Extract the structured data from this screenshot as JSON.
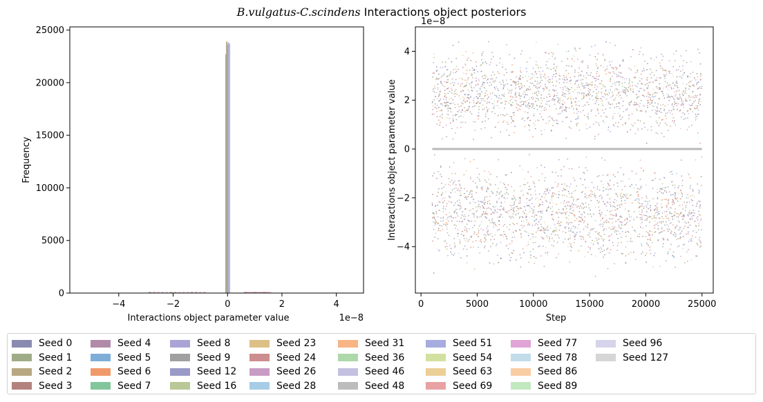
{
  "figure": {
    "title_italic": "B.vulgatus-C.scindens",
    "title_rest": " Interactions object posteriors"
  },
  "chart_data": [
    {
      "type": "bar",
      "subtype": "histogram",
      "xlabel": "Interactions object parameter value",
      "ylabel": "Frequency",
      "x_offset_label": "1e−8",
      "xlim": [
        -5.8,
        5.0
      ],
      "ylim": [
        0,
        25300
      ],
      "xticks": [
        -4,
        -2,
        0,
        2,
        4
      ],
      "yticks": [
        0,
        5000,
        10000,
        15000,
        20000,
        25000
      ],
      "peak_series": [
        {
          "seed": "Seed 0",
          "x": -0.05,
          "count": 22700
        },
        {
          "seed": "Seed 2",
          "x": -0.03,
          "count": 23900
        },
        {
          "seed": "Seed 5",
          "x": 0.01,
          "count": 23600
        },
        {
          "seed": "Seed 8",
          "x": 0.04,
          "count": 23800
        },
        {
          "seed": "Seed 48",
          "x": 0.07,
          "count": 23700
        }
      ],
      "tails_x_range": [
        [
          -2.9,
          -0.9
        ],
        [
          0.6,
          1.5
        ]
      ],
      "grid": false
    },
    {
      "type": "scatter",
      "xlabel": "Step",
      "ylabel": "Interactions object parameter value",
      "y_offset_label": "1e−8",
      "xlim": [
        -500,
        26000
      ],
      "ylim": [
        -5.9,
        5.0
      ],
      "xticks": [
        0,
        5000,
        10000,
        15000,
        20000,
        25000
      ],
      "yticks": [
        -4,
        -2,
        0,
        2,
        4
      ],
      "steps_range": [
        1000,
        25000
      ],
      "central_line_value": 0,
      "value_range": [
        -5.4,
        4.6
      ],
      "grid": false
    }
  ],
  "legend": {
    "placement": "bottom",
    "items": [
      {
        "label": "Seed 0",
        "color": "#8a8ab0"
      },
      {
        "label": "Seed 1",
        "color": "#9ead88"
      },
      {
        "label": "Seed 2",
        "color": "#b8a882"
      },
      {
        "label": "Seed 3",
        "color": "#b3827e"
      },
      {
        "label": "Seed 4",
        "color": "#b08aa8"
      },
      {
        "label": "Seed 5",
        "color": "#7eaed8"
      },
      {
        "label": "Seed 6",
        "color": "#f09a6c"
      },
      {
        "label": "Seed 7",
        "color": "#82c69c"
      },
      {
        "label": "Seed 8",
        "color": "#aaa4d6"
      },
      {
        "label": "Seed 9",
        "color": "#a0a0a0"
      },
      {
        "label": "Seed 12",
        "color": "#9a9ac8"
      },
      {
        "label": "Seed 16",
        "color": "#b8c896"
      },
      {
        "label": "Seed 23",
        "color": "#dcc086"
      },
      {
        "label": "Seed 24",
        "color": "#cc8e8e"
      },
      {
        "label": "Seed 26",
        "color": "#c89cc4"
      },
      {
        "label": "Seed 28",
        "color": "#a6cce6"
      },
      {
        "label": "Seed 31",
        "color": "#f8b484"
      },
      {
        "label": "Seed 36",
        "color": "#aed8aa"
      },
      {
        "label": "Seed 46",
        "color": "#c4c0e0"
      },
      {
        "label": "Seed 48",
        "color": "#bcbcbc"
      },
      {
        "label": "Seed 51",
        "color": "#a6acde"
      },
      {
        "label": "Seed 54",
        "color": "#d2e0a0"
      },
      {
        "label": "Seed 63",
        "color": "#eccf96"
      },
      {
        "label": "Seed 69",
        "color": "#e8a2a4"
      },
      {
        "label": "Seed 77",
        "color": "#e0a4d6"
      },
      {
        "label": "Seed 78",
        "color": "#c2dcea"
      },
      {
        "label": "Seed 86",
        "color": "#facca4"
      },
      {
        "label": "Seed 89",
        "color": "#c2e8c0"
      },
      {
        "label": "Seed 96",
        "color": "#d6d4ea"
      },
      {
        "label": "Seed 127",
        "color": "#d6d6d6"
      }
    ]
  }
}
